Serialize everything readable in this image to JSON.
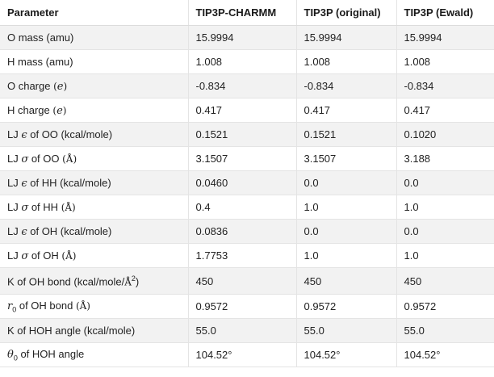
{
  "table": {
    "headers": [
      "Parameter",
      "TIP3P-CHARMM",
      "TIP3P (original)",
      "TIP3P (Ewald)"
    ],
    "rows": [
      {
        "parts": [
          "O mass (amu)"
        ],
        "values": [
          "15.9994",
          "15.9994",
          "15.9994"
        ]
      },
      {
        "parts": [
          "H mass (amu)"
        ],
        "values": [
          "1.008",
          "1.008",
          "1.008"
        ]
      },
      {
        "parts": [
          "O charge ",
          "(",
          "e",
          ")"
        ],
        "values": [
          "-0.834",
          "-0.834",
          "-0.834"
        ]
      },
      {
        "parts": [
          "H charge ",
          "(",
          "e",
          ")"
        ],
        "values": [
          "0.417",
          "0.417",
          "0.417"
        ]
      },
      {
        "parts": [
          "LJ ",
          "ϵ",
          " of OO (kcal/mole)"
        ],
        "values": [
          "0.1521",
          "0.1521",
          "0.1020"
        ]
      },
      {
        "parts": [
          "LJ ",
          "σ",
          " of OO ",
          "(Å)"
        ],
        "values": [
          "3.1507",
          "3.1507",
          "3.188"
        ]
      },
      {
        "parts": [
          "LJ ",
          "ϵ",
          " of HH (kcal/mole)"
        ],
        "values": [
          "0.0460",
          "0.0",
          "0.0"
        ]
      },
      {
        "parts": [
          "LJ ",
          "σ",
          " of HH ",
          "(Å)"
        ],
        "values": [
          "0.4",
          "1.0",
          "1.0"
        ]
      },
      {
        "parts": [
          "LJ ",
          "ϵ",
          " of OH (kcal/mole)"
        ],
        "values": [
          "0.0836",
          "0.0",
          "0.0"
        ]
      },
      {
        "parts": [
          "LJ ",
          "σ",
          " of OH ",
          "(Å)"
        ],
        "values": [
          "1.7753",
          "1.0",
          "1.0"
        ]
      },
      {
        "parts": [
          "K of OH bond (kcal/mole/",
          "Å",
          "2",
          ")"
        ],
        "values": [
          "450",
          "450",
          "450"
        ]
      },
      {
        "parts": [
          "r",
          "0",
          " of OH bond ",
          "(Å)"
        ],
        "values": [
          "0.9572",
          "0.9572",
          "0.9572"
        ]
      },
      {
        "parts": [
          "K of HOH angle (kcal/mole)"
        ],
        "values": [
          "55.0",
          "55.0",
          "55.0"
        ]
      },
      {
        "parts": [
          "θ",
          "0",
          " of HOH angle"
        ],
        "values": [
          "104.52°",
          "104.52°",
          "104.52°"
        ]
      }
    ]
  }
}
